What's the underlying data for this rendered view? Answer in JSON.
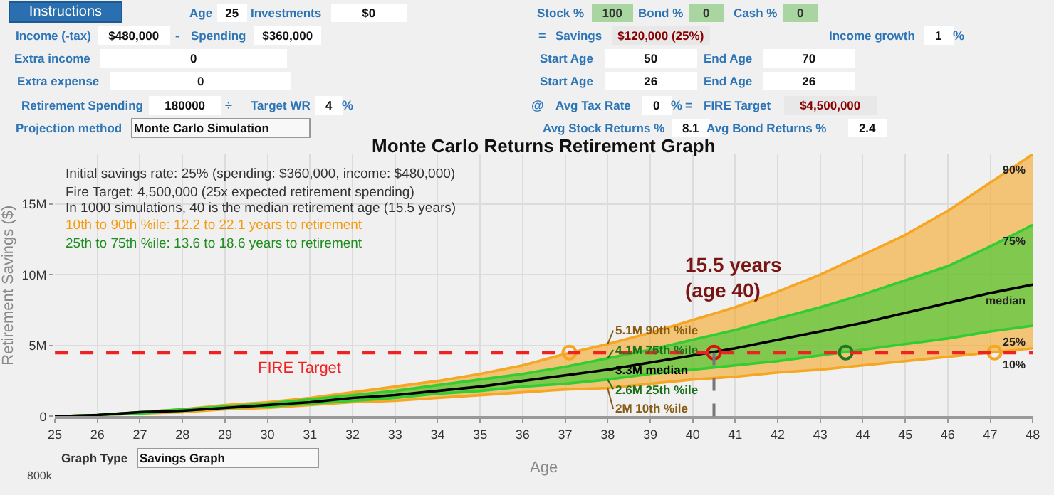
{
  "chart_data": {
    "type": "line",
    "title": "Monte Carlo Returns Retirement Graph",
    "xlabel": "Age",
    "ylabel": "Retirement Savings ($)",
    "x": [
      25,
      26,
      27,
      28,
      29,
      30,
      31,
      32,
      33,
      34,
      35,
      36,
      37,
      38,
      39,
      40,
      41,
      42,
      43,
      44,
      45,
      46,
      47,
      48
    ],
    "series": [
      {
        "color": "#f5a623",
        "values": [
          0,
          100000,
          200000,
          300000,
          500000,
          600000,
          800000,
          1000000,
          1100000,
          1300000,
          1500000,
          1700000,
          1900000,
          2000000,
          2300000,
          2600000,
          2800000,
          3100000,
          3300000,
          3600000,
          3900000,
          4200000,
          4500000,
          4800000
        ]
      },
      {
        "color": "#f5a623",
        "values": [
          0,
          100000,
          300000,
          500000,
          800000,
          1000000,
          1300000,
          1700000,
          2100000,
          2500000,
          3000000,
          3600000,
          4400000,
          5100000,
          5900000,
          6800000,
          7700000,
          8800000,
          10000000,
          11400000,
          12800000,
          14500000,
          16500000,
          18500000
        ]
      },
      {
        "color": "#33cc33",
        "values": [
          0,
          100000,
          200000,
          400000,
          600000,
          700000,
          900000,
          1100000,
          1300000,
          1600000,
          1800000,
          2100000,
          2300000,
          2600000,
          3000000,
          3300000,
          3600000,
          3900000,
          4300000,
          4700000,
          5100000,
          5500000,
          6000000,
          6400000
        ]
      },
      {
        "color": "#33cc33",
        "values": [
          0,
          100000,
          300000,
          500000,
          700000,
          900000,
          1200000,
          1500000,
          1800000,
          2200000,
          2600000,
          3000000,
          3500000,
          4100000,
          4700000,
          5400000,
          6100000,
          6900000,
          7700000,
          8600000,
          9600000,
          10600000,
          12000000,
          13500000
        ]
      },
      {
        "color": "#000000",
        "values": [
          0,
          100000,
          300000,
          400000,
          600000,
          800000,
          1000000,
          1300000,
          1500000,
          1800000,
          2100000,
          2500000,
          2900000,
          3300000,
          3800000,
          4300000,
          4800000,
          5400000,
          6000000,
          6600000,
          7300000,
          8000000,
          8700000,
          9300000
        ]
      },
      {
        "type": "scatter",
        "marker": "circle",
        "x": [
          37.1,
          40.5,
          43.6,
          47.1
        ],
        "colors": [
          "#f5a623",
          "#dd1111",
          "#227722",
          "#f5a623"
        ],
        "values": [
          4500000,
          4500000,
          4500000,
          4500000
        ]
      }
    ],
    "xlim": [
      25,
      48
    ],
    "xticks": [
      25,
      26,
      27,
      28,
      29,
      30,
      31,
      32,
      33,
      34,
      35,
      36,
      37,
      38,
      39,
      40,
      41,
      42,
      43,
      44,
      45,
      46,
      47,
      48
    ],
    "ylim": [
      0,
      18500000
    ],
    "yticks": [
      0,
      {
        "value": 5000000,
        "label": "5M"
      },
      {
        "value": 10000000,
        "label": "10M"
      },
      {
        "value": 15000000,
        "label": "15M"
      }
    ],
    "grid": true,
    "ref_lines": [
      {
        "axis": "y",
        "value": 4500000,
        "label": "FIRE Target",
        "color": "#ee2222",
        "line_style": "dashed"
      },
      {
        "axis": "x",
        "value": 40.5,
        "color": "#777777",
        "line_style": "dashed"
      }
    ],
    "annotations": [
      "Initial savings rate: 25% (spending: $360,000, income: $480,000)",
      "Fire Target: 4,500,000 (25x expected retirement spending)",
      "In 1000 simulations, 40 is the median retirement age (15.5 years)",
      "10th to 90th %ile: 12.2 to 22.1 years to retirement",
      "25th to 75th %ile: 13.6 to 18.6 years to retirement",
      {
        "text": "5.1M 90th %ile",
        "x": 38,
        "y": 5100000
      },
      {
        "text": "4.1M 75th %ile",
        "x": 38,
        "y": 4100000
      },
      {
        "text": "3.3M median",
        "x": 38,
        "y": 3300000
      },
      {
        "text": "2.6M 25th %ile",
        "x": 38,
        "y": 2600000
      },
      {
        "text": "2M 10th %ile",
        "x": 38,
        "y": 2000000
      },
      {
        "text": "90%",
        "x": 48,
        "y": 18500000
      },
      {
        "text": "75%",
        "x": 48,
        "y": 13500000
      },
      {
        "text": "median",
        "x": 48,
        "y": 9300000
      },
      {
        "text": "25%",
        "x": 48,
        "y": 6400000
      },
      {
        "text": "10%",
        "x": 48,
        "y": 4800000
      },
      {
        "text": "15.5 years\n(age 40)",
        "x": 40.5,
        "y": 4500000
      },
      "Instructions",
      "Age",
      "25",
      "Investments",
      "$0",
      "Stock %",
      "100",
      "Bond %",
      "0",
      "Cash %",
      "0",
      "Income (-tax)",
      "$480,000",
      "-",
      "Spending",
      "$360,000",
      "=",
      "Savings",
      "$120,000 (25%)",
      "Income growth",
      "1",
      "%",
      "Extra income",
      "0",
      "Start Age",
      "50",
      "End Age",
      "70",
      "Extra expense",
      "0",
      "Start Age",
      "26",
      "End Age",
      "26",
      "Retirement Spending",
      "180000",
      "÷",
      "Target WR",
      "4",
      "%",
      "@",
      "Avg Tax Rate",
      "0",
      "%",
      "=",
      "FIRE Target",
      "$4,500,000",
      "Projection method",
      "Monte Carlo Simulation",
      "Avg Stock Returns %",
      "8.1",
      "Avg Bond Returns %",
      "2.4",
      "Graph Type",
      "Savings Graph",
      "800k"
    ]
  }
}
